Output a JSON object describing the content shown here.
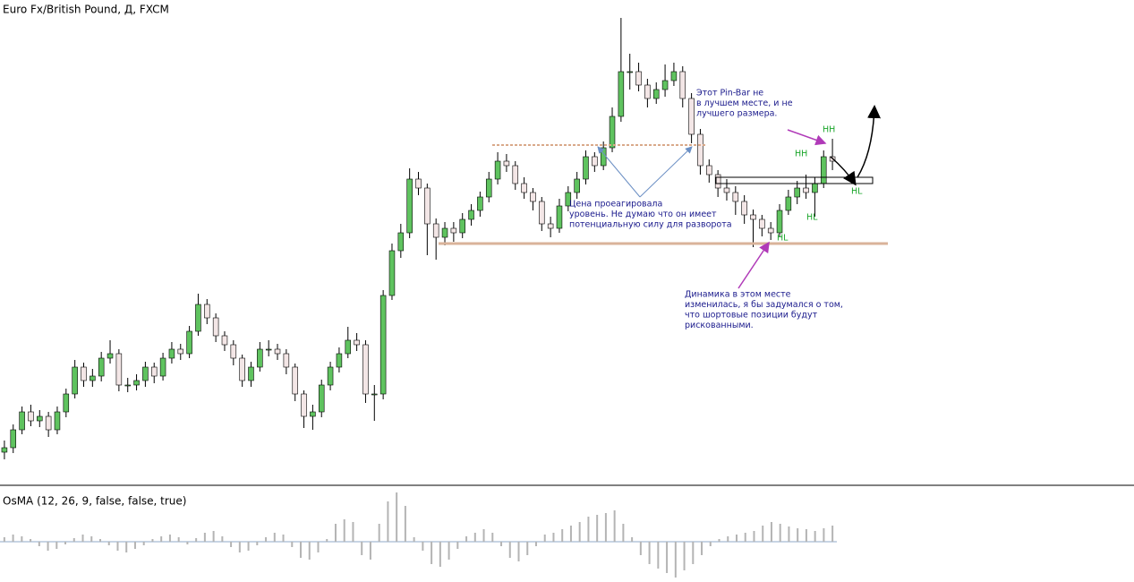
{
  "chart_data": [
    {
      "type": "candlestick",
      "title": "Euro Fx/British Pound, Д, FXCM",
      "ylim": [
        0,
        520
      ],
      "up_color": "#5fc35f",
      "down_color": "#f3e6e6",
      "open": [
        35,
        40,
        60,
        80,
        70,
        75,
        60,
        80,
        100,
        130,
        115,
        120,
        140,
        145,
        110,
        110,
        115,
        130,
        120,
        140,
        150,
        145,
        170,
        200,
        185,
        165,
        155,
        140,
        115,
        130,
        150,
        150,
        145,
        130,
        100,
        75,
        80,
        110,
        130,
        145,
        160,
        155,
        100,
        100,
        210,
        260,
        280,
        340,
        330,
        290,
        275,
        285,
        280,
        295,
        305,
        320,
        340,
        360,
        355,
        335,
        325,
        315,
        290,
        285,
        310,
        325,
        340,
        365,
        355,
        375,
        410,
        460,
        460,
        445,
        430,
        440,
        450,
        460,
        430,
        390,
        355,
        345,
        330,
        325,
        315,
        300,
        295,
        285,
        280,
        305,
        320,
        330,
        325,
        335,
        365
      ],
      "high": [
        48,
        66,
        86,
        88,
        82,
        80,
        86,
        106,
        138,
        135,
        128,
        147,
        160,
        150,
        118,
        122,
        136,
        135,
        146,
        158,
        156,
        176,
        212,
        206,
        190,
        170,
        160,
        144,
        136,
        158,
        160,
        156,
        150,
        134,
        104,
        88,
        116,
        136,
        152,
        175,
        168,
        160,
        110,
        216,
        268,
        290,
        352,
        348,
        335,
        296,
        292,
        292,
        302,
        312,
        326,
        348,
        370,
        368,
        360,
        342,
        330,
        320,
        298,
        318,
        332,
        348,
        372,
        370,
        382,
        420,
        520,
        480,
        470,
        452,
        448,
        468,
        470,
        466,
        436,
        396,
        362,
        350,
        340,
        332,
        322,
        306,
        300,
        292,
        312,
        328,
        338,
        345,
        342,
        372,
        385
      ],
      "low": [
        27,
        34,
        55,
        64,
        63,
        52,
        55,
        74,
        95,
        108,
        108,
        114,
        134,
        103,
        102,
        104,
        108,
        112,
        115,
        134,
        138,
        140,
        165,
        178,
        158,
        148,
        132,
        108,
        108,
        125,
        142,
        138,
        122,
        92,
        62,
        60,
        74,
        104,
        124,
        140,
        148,
        90,
        70,
        94,
        205,
        252,
        274,
        322,
        255,
        250,
        266,
        270,
        274,
        288,
        298,
        314,
        334,
        348,
        328,
        318,
        305,
        282,
        275,
        280,
        304,
        318,
        334,
        348,
        350,
        370,
        404,
        440,
        438,
        420,
        424,
        432,
        444,
        420,
        380,
        345,
        336,
        320,
        316,
        300,
        290,
        264,
        276,
        272,
        276,
        300,
        312,
        318,
        298,
        330,
        350
      ],
      "close": [
        40,
        60,
        80,
        70,
        75,
        60,
        80,
        100,
        130,
        115,
        120,
        140,
        145,
        110,
        110,
        115,
        130,
        120,
        140,
        150,
        145,
        170,
        200,
        185,
        165,
        155,
        140,
        115,
        130,
        150,
        150,
        145,
        130,
        100,
        75,
        80,
        110,
        130,
        145,
        160,
        155,
        100,
        100,
        210,
        260,
        280,
        340,
        330,
        290,
        275,
        285,
        280,
        295,
        305,
        320,
        340,
        360,
        355,
        335,
        325,
        315,
        290,
        285,
        310,
        325,
        340,
        365,
        355,
        375,
        410,
        460,
        460,
        445,
        430,
        440,
        450,
        460,
        430,
        390,
        355,
        345,
        330,
        325,
        315,
        300,
        295,
        285,
        280,
        305,
        320,
        330,
        325,
        335,
        365,
        360
      ],
      "notes": [
        [
          "Этот Pin-Bar не",
          "в лучшем месте, и не",
          "лучшего размера."
        ],
        [
          "Цена проеагировала",
          "уровень. Не думаю что он имеет",
          "потенциальную силу для разворота"
        ],
        [
          "Динамика в этом месте",
          "изменилась, я бы задумался о том,",
          "что шортовые позиции будут",
          "рискованными."
        ]
      ],
      "swing_labels": [
        "HH",
        "HH",
        "HL",
        "HL",
        "HL"
      ]
    },
    {
      "type": "histogram",
      "title": "OsMA (12, 26, 9, false, false, true)",
      "color": "#b4b4b4",
      "ylim": [
        -45,
        60
      ],
      "values": [
        5,
        8,
        6,
        3,
        -5,
        -10,
        -8,
        -3,
        4,
        8,
        6,
        3,
        -4,
        -10,
        -12,
        -8,
        -4,
        3,
        6,
        8,
        5,
        -3,
        4,
        10,
        12,
        6,
        -6,
        -12,
        -10,
        -4,
        5,
        10,
        8,
        -6,
        -18,
        -20,
        -12,
        3,
        20,
        25,
        22,
        -15,
        -20,
        20,
        45,
        55,
        40,
        5,
        -10,
        -25,
        -28,
        -20,
        -8,
        6,
        10,
        14,
        10,
        -5,
        -18,
        -22,
        -15,
        -5,
        8,
        10,
        14,
        18,
        22,
        28,
        30,
        32,
        35,
        20,
        5,
        -15,
        -25,
        -30,
        -35,
        -40,
        -32,
        -25,
        -15,
        -5,
        3,
        6,
        8,
        10,
        12,
        18,
        22,
        20,
        17,
        15,
        14,
        12,
        15,
        18
      ]
    }
  ]
}
